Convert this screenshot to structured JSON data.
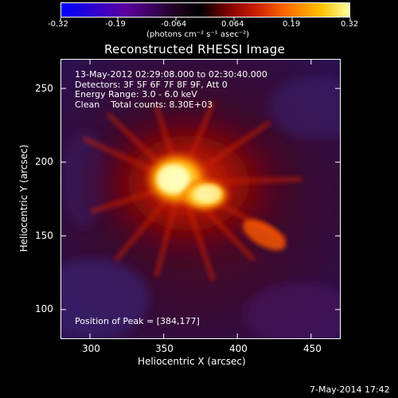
{
  "colorbar": {
    "ticks": [
      "-0.32",
      "-0.19",
      "-0.064",
      "0.064",
      "0.19",
      "0.32"
    ],
    "unit_label": "(photons cm⁻² s⁻¹ asec⁻²)",
    "stops": [
      "#0000ff",
      "#6a00a8",
      "#000000",
      "#b30000",
      "#ff7a00",
      "#ffff99"
    ]
  },
  "plot": {
    "title": "Reconstructed RHESSI Image",
    "xlabel": "Heliocentric X (arcsec)",
    "ylabel": "Heliocentric Y (arcsec)",
    "x_ticks": [
      "300",
      "350",
      "400",
      "450"
    ],
    "y_ticks": [
      "100",
      "150",
      "200",
      "250"
    ],
    "xlim": [
      280,
      470
    ],
    "ylim": [
      80,
      270
    ],
    "info": [
      "13-May-2012 02:29:08.000 to 02:30:40.000",
      "Detectors: 3F 5F 6F 7F 8F 9F, Att 0",
      "Energy Range: 3.0 - 6.0 keV",
      "Clean    Total counts: 8.30E+03"
    ],
    "peak_label": "Position of Peak = [384,177]"
  },
  "footer": {
    "timestamp": "7-May-2014 17:42"
  }
}
